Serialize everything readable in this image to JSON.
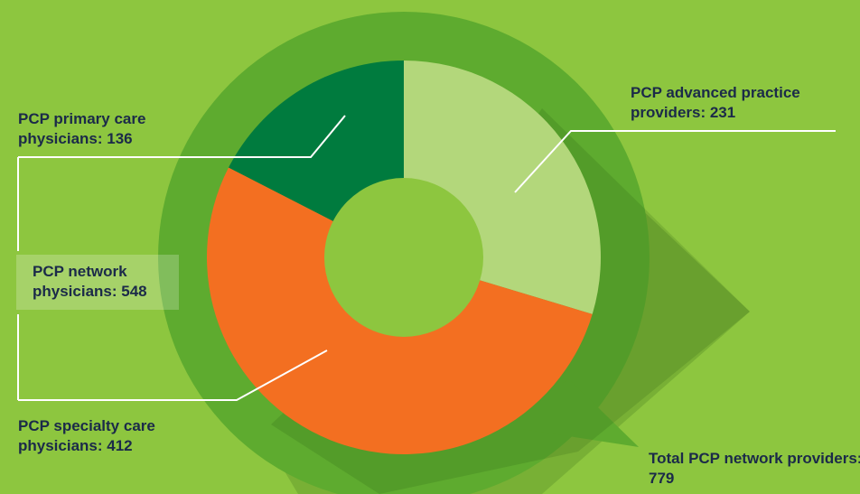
{
  "chart_data": {
    "type": "pie",
    "categories": [
      "PCP advanced practice providers: 231",
      "PCP specialty care physicians: 412",
      "PCP primary care physicians: 136"
    ],
    "values": [
      231,
      412,
      136
    ],
    "colors": [
      "#b3d77b",
      "#f36f21",
      "#007b3e"
    ],
    "annotations": [
      "PCP network physicians: 548",
      "Total PCP network providers: 779"
    ]
  }
}
